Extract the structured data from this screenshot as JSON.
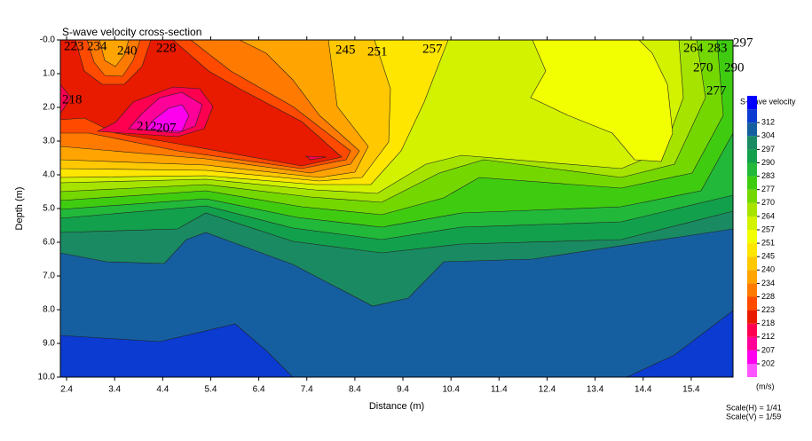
{
  "chart_data": {
    "type": "contour",
    "title": "S-wave velocity cross-section",
    "x_label": "Distance (m)",
    "y_label": "Depth (m)",
    "xlim": [
      2.27,
      16.27
    ],
    "xticks": [
      2.4,
      3.4,
      4.4,
      5.4,
      6.4,
      7.4,
      8.4,
      9.4,
      10.4,
      11.4,
      12.4,
      13.4,
      14.4,
      15.4
    ],
    "ylim": [
      0,
      10
    ],
    "y_inverted": true,
    "yticks": [
      {
        "value": 0,
        "label": "-0.0"
      },
      {
        "value": 1,
        "label": "1.0"
      },
      {
        "value": 2,
        "label": "2.0"
      },
      {
        "value": 3,
        "label": "3.0"
      },
      {
        "value": 4,
        "label": "4.0"
      },
      {
        "value": 5,
        "label": "5.0"
      },
      {
        "value": 6,
        "label": "6.0"
      },
      {
        "value": 7,
        "label": "7.0"
      },
      {
        "value": 8,
        "label": "8.0"
      },
      {
        "value": 9,
        "label": "9.0"
      },
      {
        "value": 10,
        "label": "10.0"
      }
    ],
    "colorbar": {
      "title": "S-wave velocity",
      "unit": "(m/s)",
      "levels": [
        202,
        207,
        212,
        218,
        223,
        228,
        234,
        240,
        245,
        251,
        257,
        264,
        270,
        277,
        283,
        290,
        297,
        304,
        312
      ],
      "colors": [
        "#ff55ff",
        "#ff00ee",
        "#ff0099",
        "#ff0050",
        "#e81a00",
        "#ff4a00",
        "#ff7a00",
        "#ffa400",
        "#ffc800",
        "#ffe600",
        "#f2ff00",
        "#d2f200",
        "#a6e400",
        "#74d800",
        "#3fcc10",
        "#22b83a",
        "#12a04c",
        "#1a8a62",
        "#155fa0",
        "#0b3bd0",
        "#0000ff"
      ]
    },
    "contour_labels": [
      223,
      234,
      240,
      228,
      245,
      251,
      257,
      264,
      283,
      297,
      270,
      290,
      277,
      218,
      212,
      207
    ],
    "scale_notes": [
      "Scale(H) = 1/41",
      "Scale(V) = 1/59"
    ]
  }
}
